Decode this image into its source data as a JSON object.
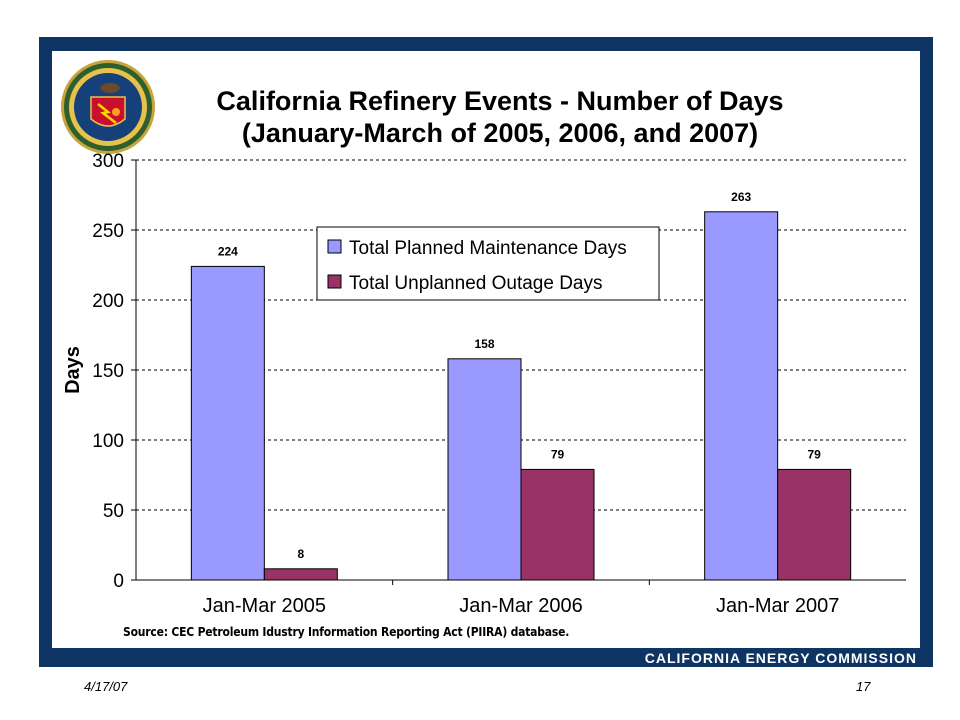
{
  "slide": {
    "title_line1": "California Refinery Events - Number of Days",
    "title_line2": "(January-March of 2005, 2006, and 2007)",
    "source": "Source: CEC Petroleum Idustry Information Reporting Act (PIIRA) database.",
    "org": "CALIFORNIA ENERGY COMMISSION",
    "date": "4/17/07",
    "page": "17",
    "frame_color": "#0d3463"
  },
  "chart_data": {
    "type": "bar",
    "title": "California Refinery Events - Number of Days (January-March of 2005, 2006, and 2007)",
    "categories": [
      "Jan-Mar 2005",
      "Jan-Mar 2006",
      "Jan-Mar 2007"
    ],
    "series": [
      {
        "name": "Total Planned Maintenance Days",
        "values": [
          224,
          158,
          263
        ],
        "color": "#9999ff"
      },
      {
        "name": "Total Unplanned Outage Days",
        "values": [
          8,
          79,
          79
        ],
        "color": "#993366"
      }
    ],
    "ylabel": "Days",
    "xlabel": "",
    "ylim": [
      0,
      300
    ],
    "yticks": [
      0,
      50,
      100,
      150,
      200,
      250,
      300
    ],
    "grid": true,
    "legend": "top-center"
  }
}
